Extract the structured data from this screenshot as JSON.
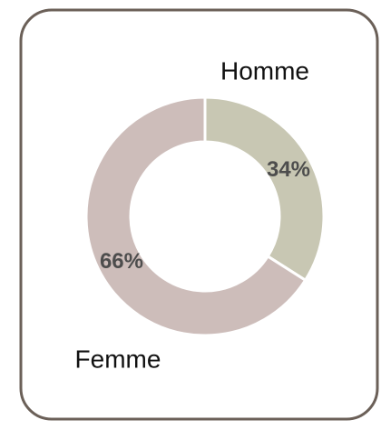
{
  "chart_data": {
    "type": "pie",
    "donut": true,
    "categories": [
      "Homme",
      "Femme"
    ],
    "values": [
      34,
      66
    ],
    "value_labels": [
      "34%",
      "66%"
    ],
    "colors": [
      "#c8c7b3",
      "#cdbdba"
    ]
  }
}
